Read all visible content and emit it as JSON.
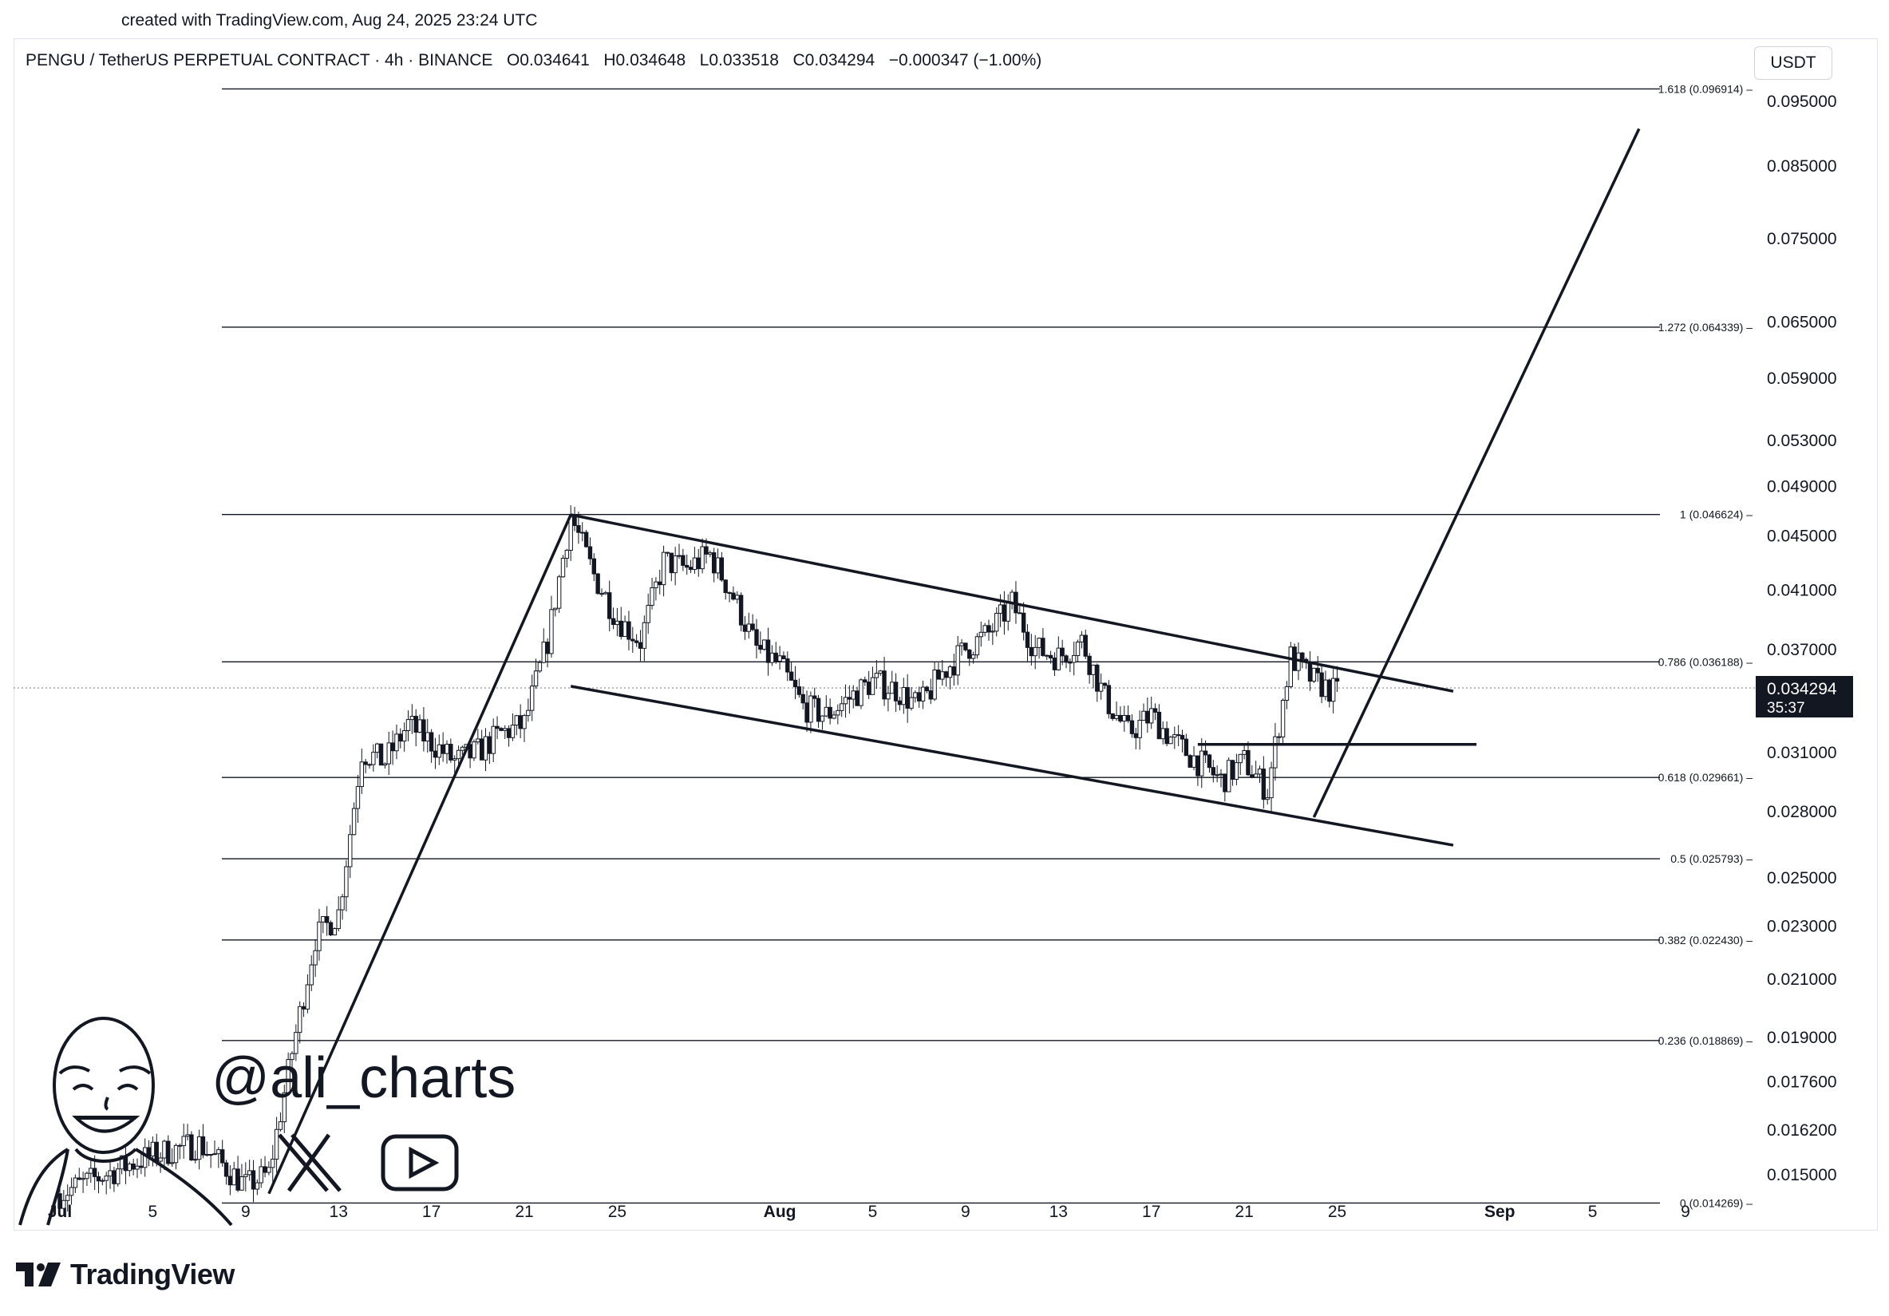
{
  "created_text": "created with TradingView.com, Aug 24, 2025 23:24 UTC",
  "header": {
    "symbol": "PENGU / TetherUS PERPETUAL CONTRACT · 4h · BINANCE",
    "open": "O0.034641",
    "high": "H0.034648",
    "low": "L0.033518",
    "close": "C0.034294",
    "change": "−0.000347 (−1.00%)"
  },
  "currency_button": "USDT",
  "last_price": {
    "value": "0.034294",
    "countdown": "35:37"
  },
  "watermark": {
    "handle": "@ali_charts",
    "x_icon": "x-logo-icon",
    "youtube_icon": "youtube-play-icon"
  },
  "footer_brand": "TradingView",
  "chart_data": {
    "type": "candlestick",
    "yscale": "log",
    "ylim": [
      0.0137,
      0.105
    ],
    "y_ticks": [
      "0.095000",
      "0.085000",
      "0.075000",
      "0.065000",
      "0.059000",
      "0.053000",
      "0.049000",
      "0.045000",
      "0.041000",
      "0.037000",
      "0.034294",
      "0.031000",
      "0.028000",
      "0.025000",
      "0.023000",
      "0.021000",
      "0.019000",
      "0.017600",
      "0.016200",
      "0.015000"
    ],
    "x_ticks": [
      "Jul",
      "5",
      "9",
      "13",
      "17",
      "21",
      "25",
      "Aug",
      "5",
      "9",
      "13",
      "17",
      "21",
      "25",
      "Sep",
      "5",
      "9"
    ],
    "fib_levels": [
      {
        "label": "1.618 (0.096914)",
        "value": 0.096914
      },
      {
        "label": "1.272 (0.064339)",
        "value": 0.064339
      },
      {
        "label": "1 (0.046624)",
        "value": 0.046624
      },
      {
        "label": "0.786 (0.036188)",
        "value": 0.036188
      },
      {
        "label": "0.618 (0.029661)",
        "value": 0.029661
      },
      {
        "label": "0.5 (0.025793)",
        "value": 0.025793
      },
      {
        "label": "0.382 (0.022430)",
        "value": 0.02243
      },
      {
        "label": "0.236 (0.018869)",
        "value": 0.018869
      },
      {
        "label": "0 (0.014269)",
        "value": 0.014269
      }
    ],
    "price_path": [
      [
        "2025-07-01",
        0.0145
      ],
      [
        "2025-07-03",
        0.015
      ],
      [
        "2025-07-05",
        0.0155
      ],
      [
        "2025-07-07",
        0.0158
      ],
      [
        "2025-07-09",
        0.0147
      ],
      [
        "2025-07-10",
        0.015
      ],
      [
        "2025-07-11",
        0.0185
      ],
      [
        "2025-07-12",
        0.0225
      ],
      [
        "2025-07-13",
        0.0235
      ],
      [
        "2025-07-14",
        0.031
      ],
      [
        "2025-07-15",
        0.0305
      ],
      [
        "2025-07-16",
        0.0325
      ],
      [
        "2025-07-17",
        0.0315
      ],
      [
        "2025-07-18",
        0.0305
      ],
      [
        "2025-07-19",
        0.031
      ],
      [
        "2025-07-20",
        0.032
      ],
      [
        "2025-07-21",
        0.0325
      ],
      [
        "2025-07-22",
        0.0375
      ],
      [
        "2025-07-23",
        0.0465
      ],
      [
        "2025-07-24",
        0.042
      ],
      [
        "2025-07-25",
        0.039
      ],
      [
        "2025-07-26",
        0.0375
      ],
      [
        "2025-07-27",
        0.043
      ],
      [
        "2025-07-28",
        0.0425
      ],
      [
        "2025-07-29",
        0.0435
      ],
      [
        "2025-07-30",
        0.0405
      ],
      [
        "2025-07-31",
        0.037
      ],
      [
        "2025-08-01",
        0.036
      ],
      [
        "2025-08-02",
        0.0335
      ],
      [
        "2025-08-03",
        0.033
      ],
      [
        "2025-08-04",
        0.034
      ],
      [
        "2025-08-05",
        0.035
      ],
      [
        "2025-08-06",
        0.0345
      ],
      [
        "2025-08-07",
        0.0335
      ],
      [
        "2025-08-08",
        0.0355
      ],
      [
        "2025-08-09",
        0.037
      ],
      [
        "2025-08-10",
        0.038
      ],
      [
        "2025-08-11",
        0.04
      ],
      [
        "2025-08-12",
        0.037
      ],
      [
        "2025-08-13",
        0.0365
      ],
      [
        "2025-08-14",
        0.0375
      ],
      [
        "2025-08-15",
        0.034
      ],
      [
        "2025-08-16",
        0.032
      ],
      [
        "2025-08-17",
        0.033
      ],
      [
        "2025-08-18",
        0.0315
      ],
      [
        "2025-08-19",
        0.0305
      ],
      [
        "2025-08-20",
        0.0295
      ],
      [
        "2025-08-21",
        0.0305
      ],
      [
        "2025-08-22",
        0.029
      ],
      [
        "2025-08-23",
        0.0365
      ],
      [
        "2025-08-24",
        0.035
      ],
      [
        "2025-08-25",
        0.0343
      ]
    ],
    "drawings": [
      {
        "type": "line",
        "points": [
          [
            "2025-07-10",
            0.0145
          ],
          [
            "2025-07-23",
            0.0466
          ]
        ]
      },
      {
        "type": "line",
        "points": [
          [
            "2025-07-23",
            0.0466
          ],
          [
            "2025-08-30",
            0.0344
          ]
        ]
      },
      {
        "type": "line",
        "points": [
          [
            "2025-07-23",
            0.0347
          ],
          [
            "2025-08-30",
            0.0264
          ]
        ]
      },
      {
        "type": "line",
        "points": [
          [
            "2025-08-19",
            0.0314
          ],
          [
            "2025-08-31",
            0.0314
          ]
        ]
      },
      {
        "type": "line",
        "points": [
          [
            "2025-08-24",
            0.0277
          ],
          [
            "2025-09-07",
            0.0905
          ]
        ]
      }
    ]
  }
}
